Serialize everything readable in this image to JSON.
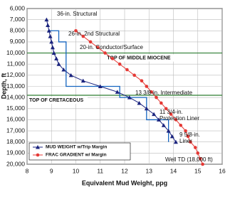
{
  "chart_data": {
    "type": "line",
    "x_label": "Equivalent Mud Weight, ppg",
    "y_label": "Depth, ft",
    "xlim": [
      8,
      16
    ],
    "xticks": [
      8,
      9,
      10,
      11,
      12,
      13,
      14,
      15,
      16
    ],
    "ylim": [
      6000,
      20000
    ],
    "y_inverted": true,
    "yticks": [
      {
        "value": 6000,
        "label": "6,000"
      },
      {
        "value": 7000,
        "label": "7,000"
      },
      {
        "value": 8000,
        "label": "8,000"
      },
      {
        "value": 9000,
        "label": "9,000"
      },
      {
        "value": 10000,
        "label": "10,000"
      },
      {
        "value": 11000,
        "label": "11,000"
      },
      {
        "value": 12000,
        "label": "12,000"
      },
      {
        "value": 13000,
        "label": "13,000"
      },
      {
        "value": 14000,
        "label": "14,000"
      },
      {
        "value": 15000,
        "label": "15,000"
      },
      {
        "value": 16000,
        "label": "16,000"
      },
      {
        "value": 17000,
        "label": "17,000"
      },
      {
        "value": 18000,
        "label": "18,000"
      },
      {
        "value": 19000,
        "label": "19,000"
      },
      {
        "value": 20000,
        "label": "20,000"
      }
    ],
    "grid": true,
    "legend": "lower left",
    "series": [
      {
        "name": "MUD WEIGHT w/Trip Margin",
        "color": "#1a237e",
        "marker": "triangle",
        "depth": [
          7000,
          7500,
          8000,
          8500,
          9000,
          9500,
          10000,
          10500,
          11000,
          11500,
          12000,
          12500,
          13000,
          13500,
          14000,
          14500,
          15000,
          15500,
          16000,
          16500,
          17000,
          17500,
          18000
        ],
        "values": [
          8.8,
          8.85,
          8.9,
          8.95,
          9.0,
          9.05,
          9.1,
          9.2,
          9.3,
          9.5,
          9.8,
          10.3,
          11.0,
          11.7,
          12.2,
          12.6,
          12.9,
          13.2,
          13.4,
          13.6,
          13.8,
          13.95,
          14.1
        ]
      },
      {
        "name": "FRAC GRADIENT w/ Margin",
        "color": "#e53935",
        "marker": "circle",
        "depth": [
          8000,
          8500,
          9000,
          9500,
          10000,
          10500,
          11000,
          11500,
          12000,
          12500,
          13000,
          13500,
          14000,
          14500,
          15000,
          15500,
          16000,
          16500,
          17000,
          17500,
          18000,
          18500,
          19000,
          19500,
          20000
        ],
        "values": [
          10.0,
          10.3,
          10.6,
          10.9,
          11.2,
          11.5,
          11.8,
          12.1,
          12.4,
          12.7,
          12.9,
          13.1,
          13.3,
          13.5,
          13.7,
          13.9,
          14.1,
          14.3,
          14.5,
          14.6,
          14.7,
          14.9,
          15.0,
          15.1,
          15.2
        ]
      }
    ],
    "casing_design": {
      "color": "#1565c0",
      "values": [
        8.85,
        9.3,
        9.3,
        9.6,
        9.6,
        11.8,
        11.8,
        12.9,
        12.9,
        13.8,
        13.8
      ],
      "depth": [
        8000,
        8000,
        9000,
        9000,
        13000,
        13000,
        14000,
        14000,
        16000,
        16000,
        18000
      ]
    },
    "formation_tops": [
      {
        "label": "TOP OF MIDDLE MIOCENE",
        "depth": 10000
      },
      {
        "label": "TOP OF CRETACEOUS",
        "depth": 13800
      }
    ],
    "annotations": [
      {
        "text": [
          "36-in. Structural"
        ]
      },
      {
        "text": [
          "26-in. 2nd Structural"
        ]
      },
      {
        "text": [
          "20-in. Conductor/Surface"
        ]
      },
      {
        "text": [
          "13 3/8-in. Intermediate"
        ]
      },
      {
        "text": [
          "11 3/4-in.",
          "Protection Liner"
        ]
      },
      {
        "text": [
          "9 5/8-in.",
          "Liner"
        ]
      },
      {
        "text": [
          "Well TD (18,000 ft)"
        ]
      }
    ]
  }
}
